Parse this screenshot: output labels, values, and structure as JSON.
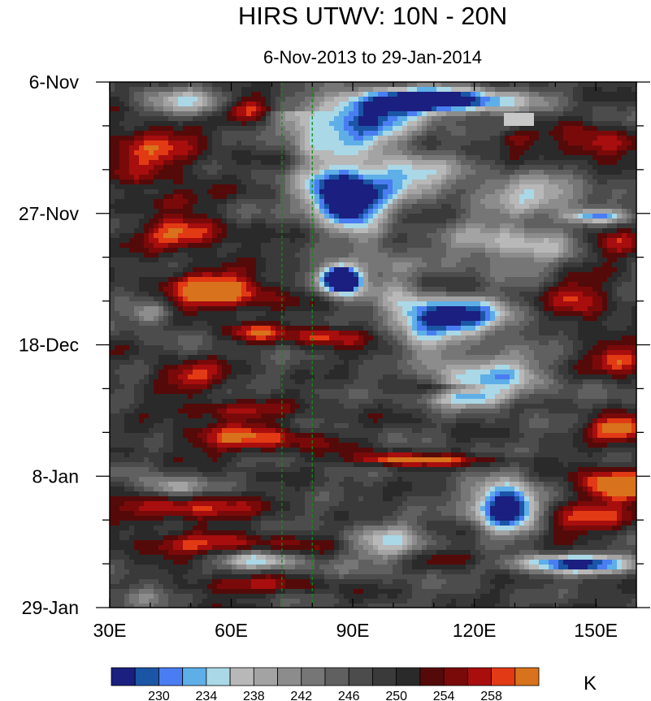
{
  "chart_data": {
    "type": "heatmap",
    "title": "HIRS UTWV: 10N - 20N",
    "subtitle": "6-Nov-2013 to 29-Jan-2014",
    "units": "K",
    "x_ticks": [
      {
        "value": 30,
        "label": "30E"
      },
      {
        "value": 60,
        "label": "60E"
      },
      {
        "value": 90,
        "label": "90E"
      },
      {
        "value": 120,
        "label": "120E"
      },
      {
        "value": 150,
        "label": "150E"
      }
    ],
    "x_minor_step": 10,
    "xlim": [
      30,
      160
    ],
    "y_ticks": [
      {
        "value": 0,
        "label": "6-Nov"
      },
      {
        "value": 21,
        "label": "27-Nov"
      },
      {
        "value": 42,
        "label": "18-Dec"
      },
      {
        "value": 63,
        "label": "8-Jan"
      },
      {
        "value": 84,
        "label": "29-Jan"
      }
    ],
    "y_minor_step": 7,
    "ylim_days": [
      0,
      84
    ],
    "reference_lines_lon": [
      72.5,
      80
    ],
    "reference_line_color": "#138a13",
    "colorbar": {
      "levels": [
        228,
        230,
        232,
        234,
        236,
        238,
        240,
        242,
        244,
        246,
        248,
        250,
        252,
        254,
        256,
        258,
        260
      ],
      "colors": [
        "#1a1f80",
        "#1b56a6",
        "#4a7df2",
        "#5eaee8",
        "#aad8e6",
        "#b8b8b8",
        "#a3a3a3",
        "#8c8c8c",
        "#767676",
        "#606060",
        "#4c4c4c",
        "#3a3a3a",
        "#2a2a2a",
        "#550a0a",
        "#7a0a0a",
        "#a80e0e",
        "#e23a14",
        "#d8721c"
      ],
      "labels": [
        230,
        234,
        238,
        242,
        246,
        250,
        254,
        258
      ]
    },
    "features": [
      {
        "kind": "warm",
        "lon": 40,
        "day": 11,
        "sx": 14,
        "sy": 5,
        "amp": 1.0
      },
      {
        "kind": "warm",
        "lon": 64,
        "day": 4.5,
        "sx": 7,
        "sy": 2,
        "amp": 1.4
      },
      {
        "kind": "warm",
        "lon": 45,
        "day": 19,
        "sx": 9,
        "sy": 1.6,
        "amp": 0.8
      },
      {
        "kind": "warm",
        "lon": 48,
        "day": 24.5,
        "sx": 12,
        "sy": 2.3,
        "amp": 1.3
      },
      {
        "kind": "warm",
        "lon": 56,
        "day": 33.5,
        "sx": 14,
        "sy": 3.4,
        "amp": 1.5
      },
      {
        "kind": "warm",
        "lon": 84,
        "day": 40.5,
        "sx": 10,
        "sy": 1.7,
        "amp": 1.2
      },
      {
        "kind": "warm",
        "lon": 66,
        "day": 40,
        "sx": 7,
        "sy": 1.5,
        "amp": 0.9
      },
      {
        "kind": "warm",
        "lon": 50,
        "day": 47,
        "sx": 10,
        "sy": 2.2,
        "amp": 1.0
      },
      {
        "kind": "warm",
        "lon": 60,
        "day": 52.5,
        "sx": 15,
        "sy": 1.5,
        "amp": 0.9
      },
      {
        "kind": "warm",
        "lon": 64,
        "day": 57,
        "sx": 18,
        "sy": 2.4,
        "amp": 1.1
      },
      {
        "kind": "warm",
        "lon": 110,
        "day": 60.5,
        "sx": 18,
        "sy": 0.9,
        "amp": 1.0
      },
      {
        "kind": "warm",
        "lon": 155,
        "day": 64.5,
        "sx": 10,
        "sy": 2.6,
        "amp": 1.8
      },
      {
        "kind": "warm",
        "lon": 156,
        "day": 55.5,
        "sx": 8,
        "sy": 2.0,
        "amp": 1.5
      },
      {
        "kind": "warm",
        "lon": 156,
        "day": 44.5,
        "sx": 7,
        "sy": 2.2,
        "amp": 1.4
      },
      {
        "kind": "warm",
        "lon": 146,
        "day": 35,
        "sx": 8,
        "sy": 4.0,
        "amp": 1.0
      },
      {
        "kind": "warm",
        "lon": 153,
        "day": 26,
        "sx": 8,
        "sy": 2.6,
        "amp": 1.0
      },
      {
        "kind": "warm",
        "lon": 150,
        "day": 10,
        "sx": 10,
        "sy": 2.5,
        "amp": 1.1
      },
      {
        "kind": "warm",
        "lon": 130,
        "day": 9,
        "sx": 6,
        "sy": 1.3,
        "amp": 0.8
      },
      {
        "kind": "warm",
        "lon": 48,
        "day": 68,
        "sx": 18,
        "sy": 2.2,
        "amp": 1.2
      },
      {
        "kind": "warm",
        "lon": 55,
        "day": 74,
        "sx": 25,
        "sy": 1.8,
        "amp": 1.0
      },
      {
        "kind": "warm",
        "lon": 60,
        "day": 80.5,
        "sx": 20,
        "sy": 1.5,
        "amp": 0.8
      },
      {
        "kind": "warm",
        "lon": 145,
        "day": 70,
        "sx": 14,
        "sy": 2.5,
        "amp": 1.0
      },
      {
        "kind": "warm",
        "lon": 116,
        "day": 76,
        "sx": 12,
        "sy": 1.6,
        "amp": 0.7
      },
      {
        "kind": "warm",
        "lon": 98,
        "day": 60,
        "sx": 8,
        "sy": 1.2,
        "amp": 0.7
      },
      {
        "kind": "moist",
        "lon": 110,
        "day": 3,
        "sx": 20,
        "sy": 2.0,
        "amp": 1.5
      },
      {
        "kind": "moist",
        "lon": 92,
        "day": 7,
        "sx": 14,
        "sy": 4.0,
        "amp": 1.0
      },
      {
        "kind": "moist",
        "lon": 88,
        "day": 19,
        "sx": 10,
        "sy": 3.5,
        "amp": 1.3
      },
      {
        "kind": "moist",
        "lon": 100,
        "day": 15,
        "sx": 16,
        "sy": 3.0,
        "amp": 0.8
      },
      {
        "kind": "moist",
        "lon": 87,
        "day": 31.5,
        "sx": 5,
        "sy": 2.3,
        "amp": 2.0
      },
      {
        "kind": "moist",
        "lon": 115,
        "day": 37.5,
        "sx": 14,
        "sy": 3.0,
        "amp": 1.2
      },
      {
        "kind": "moist",
        "lon": 126,
        "day": 47,
        "sx": 12,
        "sy": 4.0,
        "amp": 0.7
      },
      {
        "kind": "moist",
        "lon": 128,
        "day": 68,
        "sx": 8,
        "sy": 4.0,
        "amp": 1.5
      },
      {
        "kind": "moist",
        "lon": 145,
        "day": 77,
        "sx": 16,
        "sy": 1.5,
        "amp": 1.1
      },
      {
        "kind": "moist",
        "lon": 130,
        "day": 26,
        "sx": 18,
        "sy": 4.0,
        "amp": 0.6
      },
      {
        "kind": "moist",
        "lon": 135,
        "day": 18,
        "sx": 15,
        "sy": 3.0,
        "amp": 0.6
      },
      {
        "kind": "moist",
        "lon": 45,
        "day": 65,
        "sx": 8,
        "sy": 2.0,
        "amp": 0.6
      },
      {
        "kind": "moist",
        "lon": 40,
        "day": 37,
        "sx": 6,
        "sy": 2.0,
        "amp": 0.6
      },
      {
        "kind": "moist",
        "lon": 50,
        "day": 3.5,
        "sx": 12,
        "sy": 2.5,
        "amp": 0.6
      },
      {
        "kind": "moist",
        "lon": 67,
        "day": 76.5,
        "sx": 10,
        "sy": 1.6,
        "amp": 0.7
      },
      {
        "kind": "moist",
        "lon": 99,
        "day": 74,
        "sx": 10,
        "sy": 3.5,
        "amp": 0.6
      },
      {
        "kind": "moist",
        "lon": 38,
        "day": 82,
        "sx": 8,
        "sy": 2.0,
        "amp": 0.5
      },
      {
        "kind": "moist",
        "lon": 118,
        "day": 50.5,
        "sx": 10,
        "sy": 1.3,
        "amp": 0.6
      },
      {
        "kind": "moist",
        "lon": 150,
        "day": 21.5,
        "sx": 7,
        "sy": 1.0,
        "amp": 0.7
      }
    ]
  }
}
